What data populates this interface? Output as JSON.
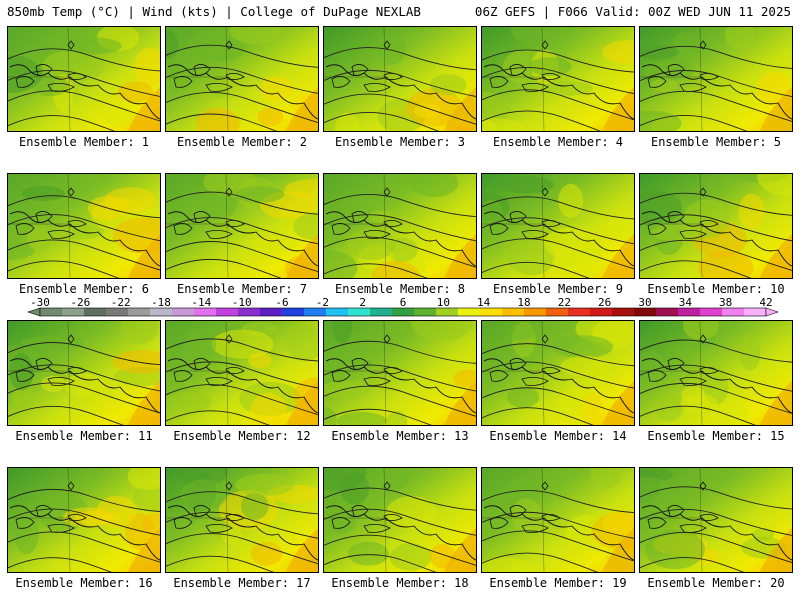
{
  "header": {
    "left_title": "850mb Temp (°C) | Wind (kts) | College of DuPage NEXLAB",
    "right_title": "06Z GEFS | F066 Valid: 00Z WED JUN 11 2025"
  },
  "members": [
    {
      "label": "Ensemble Member: 1"
    },
    {
      "label": "Ensemble Member: 2"
    },
    {
      "label": "Ensemble Member: 3"
    },
    {
      "label": "Ensemble Member: 4"
    },
    {
      "label": "Ensemble Member: 5"
    },
    {
      "label": "Ensemble Member: 6"
    },
    {
      "label": "Ensemble Member: 7"
    },
    {
      "label": "Ensemble Member: 8"
    },
    {
      "label": "Ensemble Member: 9"
    },
    {
      "label": "Ensemble Member: 10"
    },
    {
      "label": "Ensemble Member: 11"
    },
    {
      "label": "Ensemble Member: 12"
    },
    {
      "label": "Ensemble Member: 13"
    },
    {
      "label": "Ensemble Member: 14"
    },
    {
      "label": "Ensemble Member: 15"
    },
    {
      "label": "Ensemble Member: 16"
    },
    {
      "label": "Ensemble Member: 17"
    },
    {
      "label": "Ensemble Member: 18"
    },
    {
      "label": "Ensemble Member: 19"
    },
    {
      "label": "Ensemble Member: 20"
    }
  ],
  "colorbar": {
    "tick_labels": [
      "-30",
      "-26",
      "-22",
      "-18",
      "-14",
      "-10",
      "-6",
      "-2",
      "2",
      "6",
      "10",
      "14",
      "18",
      "22",
      "26",
      "30",
      "34",
      "38",
      "42"
    ],
    "colors": [
      "#6f8a6f",
      "#8aa08a",
      "#5f6f5f",
      "#7a7a7a",
      "#9a9a9a",
      "#b8b8c8",
      "#c89ad8",
      "#e070f0",
      "#c040e0",
      "#8a30d0",
      "#5a20c0",
      "#2040e0",
      "#1e7ff0",
      "#20c0f0",
      "#30e0d0",
      "#20b090",
      "#30a040",
      "#60b030",
      "#a0d020",
      "#e8f010",
      "#f8e000",
      "#f8c000",
      "#f89800",
      "#f06010",
      "#e83020",
      "#d01818",
      "#a81010",
      "#800808",
      "#a01050",
      "#c020a0",
      "#e040d0",
      "#f080f0",
      "#f8b0f8"
    ]
  }
}
